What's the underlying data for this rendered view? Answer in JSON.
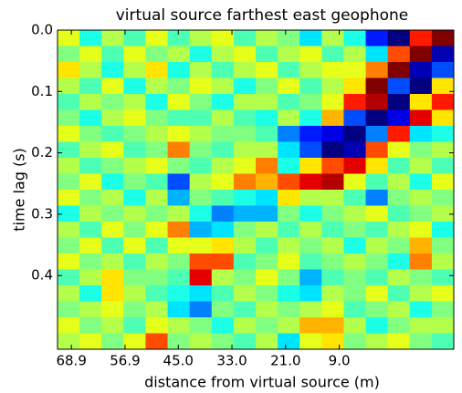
{
  "chart_data": {
    "type": "heatmap",
    "title": "virtual source farthest east geophone",
    "xlabel": "distance from virtual source (m)",
    "ylabel": "time lag (s)",
    "xlim": [
      72.0,
      -16.6
    ],
    "xticks": [
      68.9,
      56.9,
      {
        "value": 45,
        "label": "45.0"
      },
      {
        "value": 33,
        "label": "33.0"
      },
      {
        "value": 21,
        "label": "21.0"
      },
      {
        "value": 9,
        "label": "9.0"
      }
    ],
    "ylim": [
      0.0,
      0.52
    ],
    "yticks": [
      {
        "value": 0,
        "label": "0.0"
      },
      0.1,
      0.2,
      0.3,
      0.4
    ],
    "zlim": [
      -1,
      1
    ],
    "colormap": "jet",
    "values": [
      [
        0.2,
        -0.2,
        0.1,
        -0.1,
        0.2,
        -0.1,
        0.1,
        0.2,
        -0.1,
        0.1,
        0.0,
        -0.3,
        0.1,
        -0.2,
        -0.7,
        -1.0,
        0.7,
        1.0
      ],
      [
        0.0,
        0.2,
        -0.1,
        0.2,
        0.0,
        0.1,
        -0.2,
        0.1,
        0.2,
        -0.1,
        0.1,
        0.2,
        -0.1,
        0.1,
        -0.3,
        0.6,
        1.0,
        -0.9
      ],
      [
        0.3,
        0.1,
        -0.2,
        0.1,
        0.3,
        -0.2,
        0.1,
        -0.1,
        0.1,
        0.2,
        -0.1,
        0.1,
        0.2,
        0.2,
        0.5,
        1.0,
        -0.9,
        -0.6
      ],
      [
        0.1,
        -0.1,
        0.2,
        -0.2,
        0.1,
        0.0,
        0.2,
        0.1,
        -0.2,
        0.0,
        0.2,
        -0.1,
        0.1,
        0.3,
        1.0,
        -0.6,
        -1.0,
        0.3
      ],
      [
        -0.1,
        0.1,
        0.0,
        0.1,
        -0.2,
        0.2,
        0.0,
        -0.2,
        0.1,
        0.1,
        -0.1,
        0.0,
        0.2,
        0.7,
        0.9,
        -1.0,
        0.3,
        0.7
      ],
      [
        0.0,
        -0.2,
        0.1,
        0.2,
        0.0,
        -0.1,
        -0.1,
        0.1,
        -0.1,
        -0.2,
        0.1,
        -0.2,
        0.4,
        -0.6,
        -1.0,
        -0.8,
        0.8,
        0.3
      ],
      [
        0.2,
        0.0,
        -0.1,
        0.0,
        0.1,
        0.2,
        0.1,
        0.0,
        0.0,
        -0.1,
        -0.5,
        -0.7,
        -0.8,
        -1.0,
        -0.5,
        0.7,
        -0.3,
        -0.2
      ],
      [
        -0.1,
        0.1,
        0.2,
        -0.1,
        0.0,
        0.5,
        0.0,
        -0.1,
        0.1,
        0.1,
        -0.3,
        -0.6,
        -1.0,
        -0.9,
        0.6,
        0.2,
        0.0,
        0.1
      ],
      [
        0.1,
        -0.1,
        0.0,
        0.1,
        0.2,
        0.0,
        -0.1,
        0.1,
        0.2,
        0.5,
        -0.2,
        0.3,
        0.6,
        0.8,
        0.3,
        -0.1,
        0.1,
        -0.1
      ],
      [
        0.0,
        0.2,
        -0.2,
        0.0,
        -0.1,
        -0.6,
        0.1,
        0.2,
        0.5,
        0.4,
        0.6,
        0.8,
        0.9,
        0.2,
        -0.1,
        0.1,
        -0.2,
        0.2
      ],
      [
        0.2,
        0.0,
        0.1,
        -0.2,
        0.1,
        -0.4,
        0.0,
        -0.1,
        -0.2,
        -0.3,
        0.3,
        0.1,
        0.1,
        -0.1,
        -0.5,
        0.0,
        0.1,
        0.0
      ],
      [
        -0.2,
        0.1,
        0.0,
        0.1,
        0.0,
        0.1,
        -0.2,
        -0.5,
        -0.4,
        -0.4,
        0.0,
        -0.2,
        0.0,
        0.1,
        0.2,
        -0.1,
        0.0,
        0.1
      ],
      [
        0.1,
        -0.1,
        0.2,
        0.0,
        0.2,
        0.5,
        -0.4,
        -0.3,
        0.0,
        0.1,
        -0.1,
        0.1,
        -0.1,
        0.0,
        -0.1,
        0.1,
        0.2,
        -0.2
      ],
      [
        0.0,
        0.2,
        -0.1,
        0.2,
        -0.1,
        0.2,
        0.2,
        0.3,
        0.1,
        -0.1,
        0.1,
        0.0,
        0.1,
        -0.2,
        0.1,
        0.0,
        0.4,
        0.0
      ],
      [
        0.2,
        0.0,
        0.1,
        -0.1,
        0.1,
        0.0,
        0.6,
        0.6,
        -0.1,
        0.0,
        0.2,
        -0.1,
        0.0,
        0.1,
        0.0,
        -0.2,
        0.5,
        0.1
      ],
      [
        -0.1,
        0.1,
        0.3,
        0.0,
        0.0,
        -0.1,
        0.8,
        0.1,
        0.0,
        0.2,
        0.0,
        -0.4,
        -0.1,
        0.0,
        -0.1,
        0.1,
        0.0,
        -0.1
      ],
      [
        0.1,
        -0.2,
        0.3,
        0.1,
        -0.1,
        -0.2,
        -0.3,
        -0.1,
        0.1,
        0.0,
        -0.2,
        -0.3,
        0.1,
        0.0,
        0.2,
        -0.1,
        0.1,
        0.2
      ],
      [
        0.0,
        0.1,
        0.2,
        0.0,
        0.1,
        -0.3,
        -0.5,
        0.0,
        -0.1,
        0.1,
        0.0,
        0.1,
        0.2,
        -0.1,
        0.0,
        0.1,
        -0.2,
        0.0
      ],
      [
        0.2,
        0.0,
        0.1,
        -0.1,
        0.2,
        0.1,
        0.0,
        -0.2,
        0.1,
        0.0,
        0.1,
        0.4,
        0.4,
        0.1,
        -0.2,
        0.0,
        0.1,
        0.1
      ],
      [
        0.1,
        0.2,
        0.0,
        0.2,
        0.6,
        0.0,
        0.1,
        0.0,
        -0.1,
        0.1,
        -0.3,
        0.2,
        0.3,
        0.0,
        0.1,
        0.2,
        0.0,
        -0.1
      ]
    ]
  }
}
